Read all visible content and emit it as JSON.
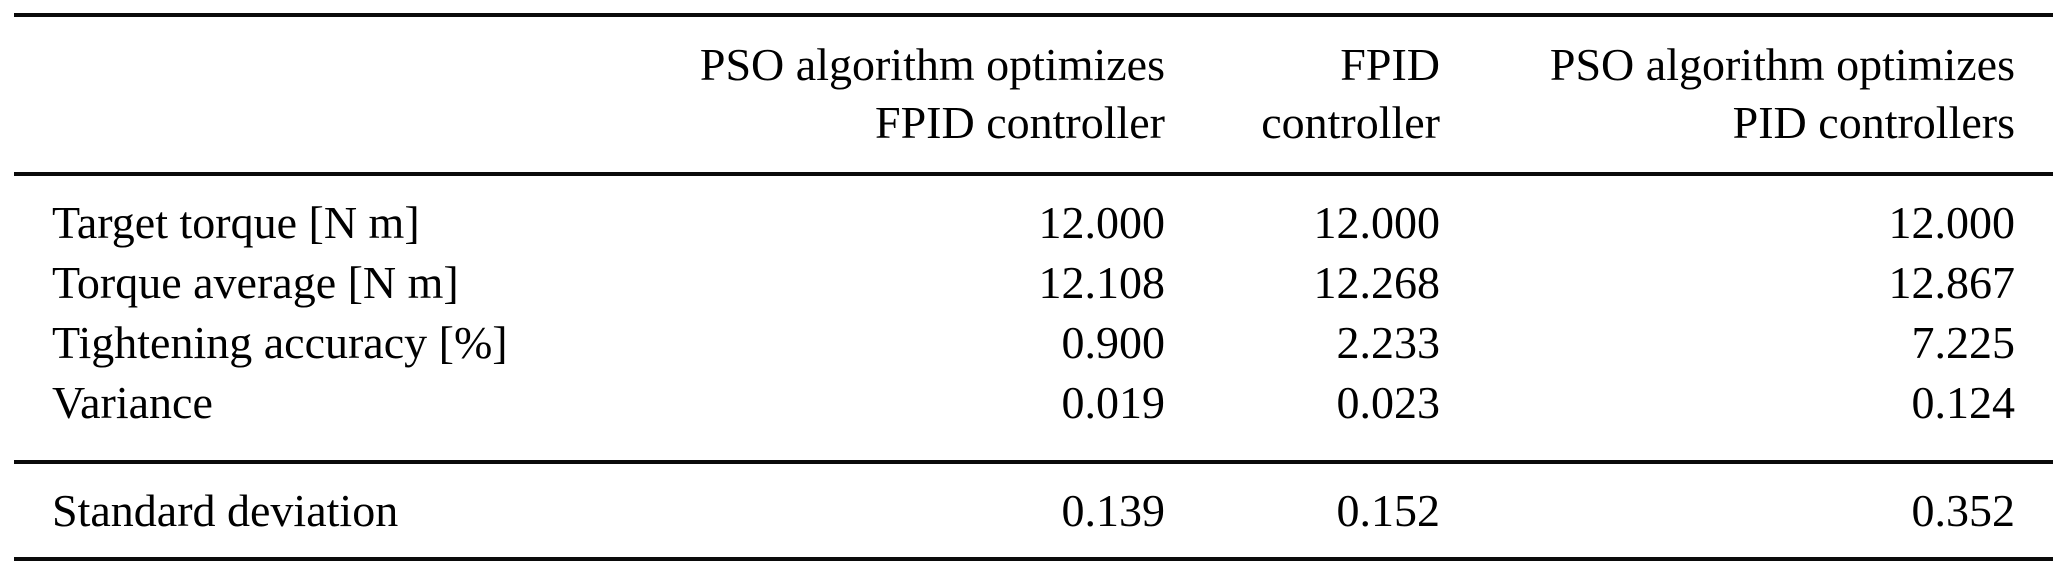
{
  "table": {
    "header": {
      "col1": {
        "line1": "PSO algorithm optimizes",
        "line2": "FPID controller"
      },
      "col2": {
        "line1": "FPID",
        "line2": "controller"
      },
      "col3": {
        "line1": "PSO algorithm optimizes",
        "line2": "PID controllers"
      }
    },
    "rows": [
      {
        "label": "Target torque [N m]",
        "values": [
          "12.000",
          "12.000",
          "12.000"
        ]
      },
      {
        "label": "Torque average [N m]",
        "values": [
          "12.108",
          "12.268",
          "12.867"
        ]
      },
      {
        "label": "Tightening accuracy [%]",
        "values": [
          "0.900",
          "2.233",
          "7.225"
        ]
      },
      {
        "label": "Variance",
        "values": [
          "0.019",
          "0.023",
          "0.124"
        ]
      }
    ],
    "footer_rows": [
      {
        "label": "Standard deviation",
        "values": [
          "0.139",
          "0.152",
          "0.352"
        ]
      }
    ],
    "colors": {
      "text": "#000000",
      "rule": "#0a0a0a",
      "background": "#ffffff"
    }
  },
  "chart_data": {
    "type": "table",
    "title": "",
    "columns": [
      "",
      "PSO algorithm optimizes FPID controller",
      "FPID controller",
      "PSO algorithm optimizes PID controllers"
    ],
    "rows": [
      [
        "Target torque [N m]",
        12.0,
        12.0,
        12.0
      ],
      [
        "Torque average [N m]",
        12.108,
        12.268,
        12.867
      ],
      [
        "Tightening accuracy [%]",
        0.9,
        2.233,
        7.225
      ],
      [
        "Variance",
        0.019,
        0.023,
        0.124
      ],
      [
        "Standard deviation",
        0.139,
        0.152,
        0.352
      ]
    ],
    "layout_hints": {
      "numeric_columns_right_aligned": true,
      "horizontal_rules_only": true,
      "footer_row_separated": "Standard deviation"
    }
  }
}
